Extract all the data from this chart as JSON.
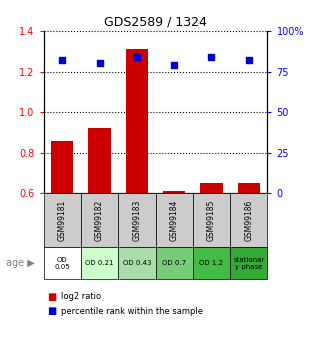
{
  "title": "GDS2589 / 1324",
  "samples": [
    "GSM99181",
    "GSM99182",
    "GSM99183",
    "GSM99184",
    "GSM99185",
    "GSM99186"
  ],
  "log2_ratio": [
    0.86,
    0.92,
    1.31,
    0.61,
    0.65,
    0.65
  ],
  "percentile_rank": [
    82,
    80,
    84,
    79,
    84,
    82
  ],
  "ylim_left": [
    0.6,
    1.4
  ],
  "ylim_right": [
    0,
    100
  ],
  "yticks_left": [
    0.6,
    0.8,
    1.0,
    1.2,
    1.4
  ],
  "yticks_right": [
    0,
    25,
    50,
    75,
    100
  ],
  "bar_color": "#cc0000",
  "scatter_color": "#0000cc",
  "age_labels": [
    "OD\n0.05",
    "OD 0.21",
    "OD 0.43",
    "OD 0.7",
    "OD 1.2",
    "stationar\ny phase"
  ],
  "age_bg_colors": [
    "#ffffff",
    "#ccffcc",
    "#aaddaa",
    "#77cc77",
    "#44bb44",
    "#33aa33"
  ],
  "sample_bg_color": "#cccccc",
  "legend_red_label": "log2 ratio",
  "legend_blue_label": "percentile rank within the sample"
}
